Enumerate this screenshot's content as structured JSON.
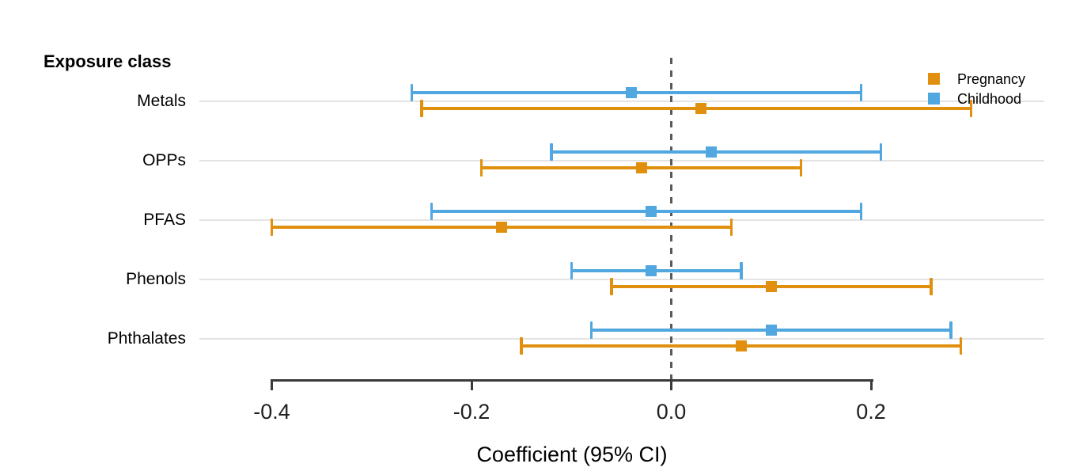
{
  "figure": {
    "header_label": "Exposure class",
    "xaxis_title": "Coefficient (95% CI)"
  },
  "legend": {
    "position": "top-right",
    "items": [
      {
        "label": "Pregnancy",
        "color": "#E0900E",
        "swatch": "square-icon"
      },
      {
        "label": "Childhood",
        "color": "#51A7DF",
        "swatch": "square-icon"
      }
    ]
  },
  "chart_data": {
    "type": "forest",
    "orientation": "horizontal",
    "title": "",
    "xlabel": "Coefficient (95% CI)",
    "ylabel_header": "Exposure class",
    "categories": [
      "Metals",
      "OPPs",
      "PFAS",
      "Phenols",
      "Phthalates"
    ],
    "series": [
      {
        "name": "Childhood",
        "color": "#51A7DF",
        "estimates": [
          -0.04,
          0.04,
          -0.02,
          -0.02,
          0.1
        ],
        "ci_low": [
          -0.26,
          -0.12,
          -0.24,
          -0.1,
          -0.08
        ],
        "ci_high": [
          0.19,
          0.21,
          0.19,
          0.07,
          0.28
        ]
      },
      {
        "name": "Pregnancy",
        "color": "#E0900E",
        "estimates": [
          0.03,
          -0.03,
          -0.17,
          0.1,
          0.07
        ],
        "ci_low": [
          -0.25,
          -0.19,
          -0.4,
          -0.06,
          -0.15
        ],
        "ci_high": [
          0.3,
          0.13,
          0.06,
          0.26,
          0.29
        ]
      }
    ],
    "xlim": [
      -0.4,
      0.2
    ],
    "x_tick_values": [
      -0.4,
      -0.2,
      0.0,
      0.2
    ],
    "x_tick_labels": [
      "-0.4",
      "-0.2",
      "0.0",
      "0.2"
    ],
    "reference_line": 0.0,
    "grid": "horizontal-light",
    "legend_position": "top-right"
  },
  "colors": {
    "pregnancy": "#E0900E",
    "childhood": "#51A7DF",
    "gridline": "#E3E3E3",
    "reference_line": "#5A5A5A",
    "axis": "#3A3A3A",
    "text": "#000000"
  }
}
